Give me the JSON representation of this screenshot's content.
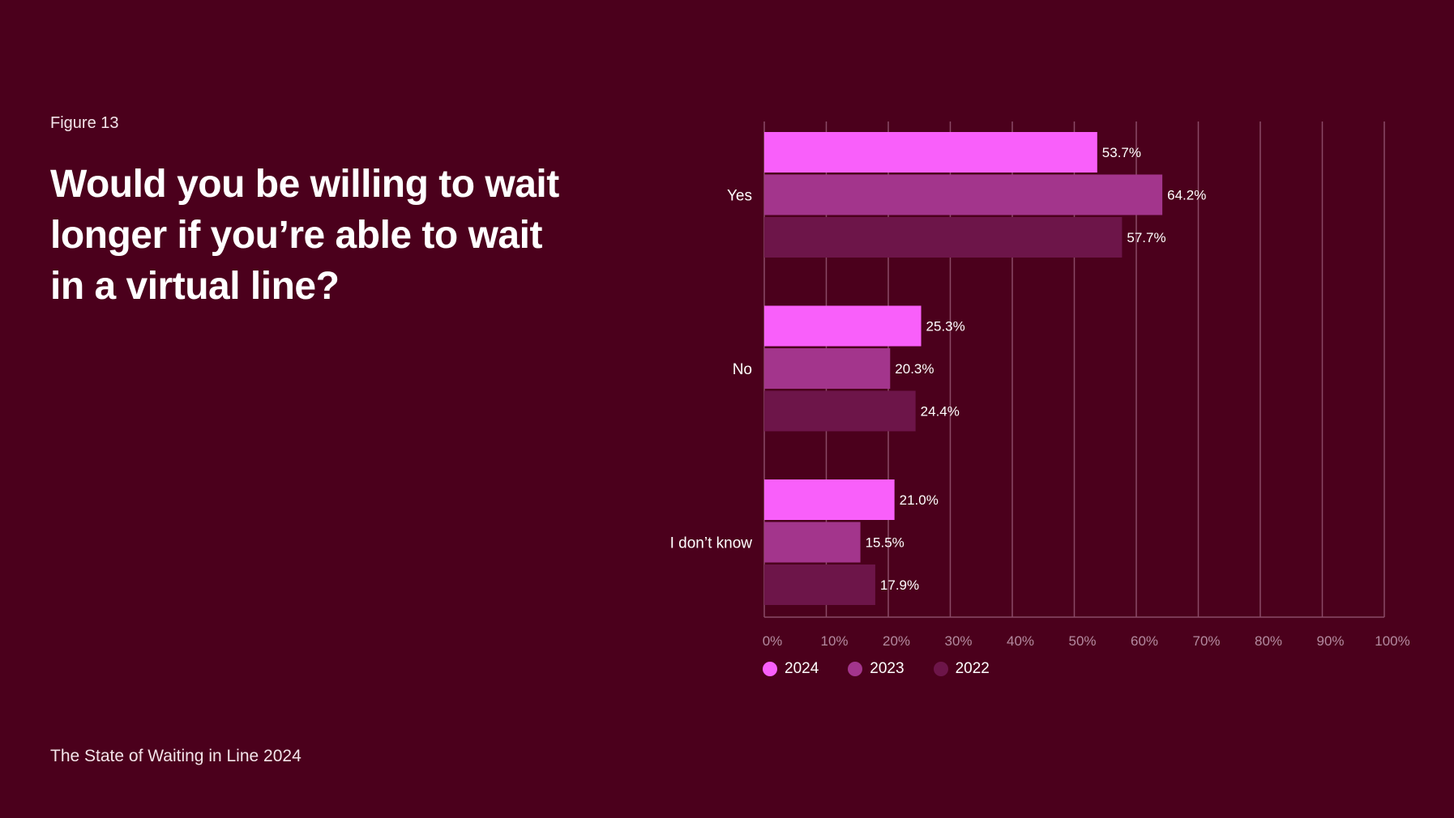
{
  "header": {
    "figure_label": "Figure 13",
    "title": "Would you be willing to wait longer if you’re able to wait in a virtual line?"
  },
  "footer": {
    "text": "The State of Waiting in Line 2024"
  },
  "colors": {
    "background": "#4b001c",
    "grid": "#8a4a66",
    "tick_label": "#b48aa0"
  },
  "chart_data": {
    "type": "bar",
    "orientation": "horizontal",
    "categories": [
      "Yes",
      "No",
      "I don’t know"
    ],
    "series": [
      {
        "name": "2024",
        "color": "#f95ffa",
        "values": [
          53.7,
          25.3,
          21.0
        ]
      },
      {
        "name": "2023",
        "color": "#a3358c",
        "values": [
          64.2,
          20.3,
          15.5
        ]
      },
      {
        "name": "2022",
        "color": "#6d1549",
        "values": [
          57.7,
          24.4,
          17.9
        ]
      }
    ],
    "data_labels": [
      [
        "53.7%",
        "25.3%",
        "21.0%"
      ],
      [
        "64.2%",
        "20.3%",
        "15.5%"
      ],
      [
        "57.7%",
        "24.4%",
        "17.9%"
      ]
    ],
    "xlim": [
      0,
      100
    ],
    "x_ticks": [
      "0%",
      "10%",
      "20%",
      "30%",
      "40%",
      "50%",
      "60%",
      "70%",
      "80%",
      "90%",
      "100%"
    ],
    "grid": true,
    "legend_position": "bottom-left"
  }
}
